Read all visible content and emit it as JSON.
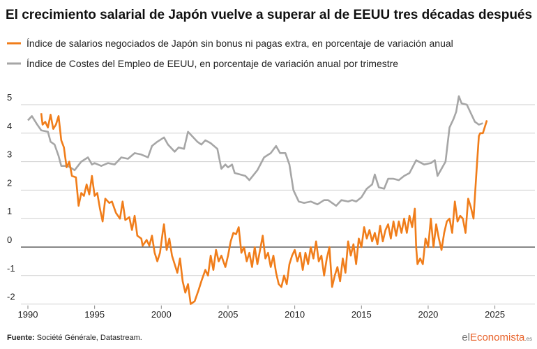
{
  "chart_data": {
    "type": "line",
    "title": "El crecimiento salarial de Japón vuelve a superar al de EEUU tres décadas después",
    "xlim": [
      1990,
      2028
    ],
    "xticks": [
      1990,
      1995,
      2000,
      2005,
      2010,
      2015,
      2020,
      2025
    ],
    "ylim": [
      -2,
      5.5
    ],
    "yticks": [
      5,
      4,
      3,
      2,
      1,
      0,
      -1,
      -2
    ],
    "grid": true,
    "series": [
      {
        "name": "Índice de salarios negociados de Japón sin bonus ni pagas extra, en porcentaje de variación anual",
        "color": "#f07d1a",
        "x": [
          1991.0,
          1991.1,
          1991.3,
          1991.5,
          1991.7,
          1991.9,
          1992.1,
          1992.3,
          1992.5,
          1992.7,
          1992.9,
          1993.1,
          1993.3,
          1993.6,
          1993.8,
          1994.0,
          1994.2,
          1994.4,
          1994.6,
          1994.8,
          1995.0,
          1995.2,
          1995.4,
          1995.6,
          1995.8,
          1996.1,
          1996.3,
          1996.6,
          1996.9,
          1997.1,
          1997.3,
          1997.6,
          1997.8,
          1998.0,
          1998.2,
          1998.5,
          1998.6,
          1998.9,
          1999.1,
          1999.3,
          1999.5,
          1999.7,
          1999.9,
          2000.1,
          2000.2,
          2000.4,
          2000.6,
          2000.8,
          2001.0,
          2001.2,
          2001.4,
          2001.6,
          2001.8,
          2002.0,
          2002.2,
          2002.5,
          2002.8,
          2003.0,
          2003.3,
          2003.5,
          2003.7,
          2003.9,
          2004.1,
          2004.3,
          2004.5,
          2004.8,
          2005.0,
          2005.2,
          2005.4,
          2005.6,
          2005.8,
          2006.0,
          2006.2,
          2006.4,
          2006.6,
          2006.8,
          2007.0,
          2007.2,
          2007.4,
          2007.6,
          2007.8,
          2008.0,
          2008.2,
          2008.4,
          2008.6,
          2008.8,
          2009.0,
          2009.2,
          2009.4,
          2009.6,
          2009.8,
          2010.0,
          2010.2,
          2010.4,
          2010.6,
          2010.8,
          2011.0,
          2011.2,
          2011.4,
          2011.6,
          2011.8,
          2012.0,
          2012.2,
          2012.4,
          2012.6,
          2012.8,
          2013.0,
          2013.2,
          2013.4,
          2013.6,
          2013.8,
          2014.0,
          2014.2,
          2014.4,
          2014.6,
          2014.8,
          2015.0,
          2015.2,
          2015.4,
          2015.6,
          2015.8,
          2016.0,
          2016.2,
          2016.4,
          2016.6,
          2016.8,
          2017.0,
          2017.2,
          2017.4,
          2017.6,
          2017.8,
          2018.0,
          2018.2,
          2018.4,
          2018.6,
          2018.8,
          2019.0,
          2019.1,
          2019.2,
          2019.4,
          2019.6,
          2019.8,
          2020.0,
          2020.2,
          2020.4,
          2020.6,
          2020.8,
          2021.0,
          2021.2,
          2021.4,
          2021.6,
          2021.8,
          2022.0,
          2022.2,
          2022.4,
          2022.6,
          2022.8,
          2023.0,
          2023.2,
          2023.4,
          2023.6,
          2023.8,
          2023.9,
          2024.1,
          2024.4
        ],
        "values": [
          4.7,
          4.3,
          4.4,
          4.2,
          4.65,
          4.15,
          4.3,
          4.6,
          3.75,
          3.5,
          2.8,
          3.0,
          2.5,
          2.45,
          1.45,
          1.9,
          1.8,
          2.2,
          1.85,
          2.5,
          1.8,
          1.9,
          1.35,
          0.9,
          1.7,
          1.55,
          1.6,
          1.2,
          1.0,
          1.6,
          0.95,
          1.05,
          0.6,
          1.1,
          0.4,
          0.3,
          0.05,
          0.25,
          0.05,
          0.4,
          -0.2,
          -0.5,
          -0.2,
          0.5,
          0.8,
          -0.1,
          0.3,
          -0.3,
          -0.6,
          -0.9,
          -0.4,
          -1.2,
          -1.6,
          -1.3,
          -2.0,
          -1.9,
          -1.5,
          -1.2,
          -0.8,
          -1.0,
          -0.3,
          -0.8,
          -0.1,
          -0.5,
          -0.3,
          -0.7,
          -0.3,
          0.2,
          0.5,
          0.45,
          0.7,
          -0.2,
          0.0,
          -0.5,
          -0.2,
          -0.7,
          0.0,
          -0.6,
          -0.1,
          0.4,
          -0.4,
          -0.2,
          -0.7,
          -0.3,
          -0.9,
          -1.3,
          -1.4,
          -1.0,
          -1.3,
          -0.6,
          -0.3,
          -0.1,
          -0.5,
          -0.2,
          -0.8,
          -0.2,
          -0.6,
          0.0,
          -0.4,
          0.2,
          -0.5,
          -0.3,
          -1.0,
          -0.4,
          0.0,
          -1.4,
          -1.0,
          -0.7,
          -1.2,
          -0.4,
          -0.9,
          0.2,
          -0.3,
          0.1,
          -0.6,
          0.3,
          0.0,
          0.7,
          0.3,
          0.6,
          0.2,
          0.5,
          0.1,
          0.75,
          0.2,
          0.6,
          0.8,
          0.3,
          0.9,
          0.4,
          0.9,
          0.5,
          1.0,
          0.5,
          1.1,
          0.7,
          1.35,
          0.0,
          -0.6,
          -0.4,
          -0.6,
          0.3,
          0.0,
          1.0,
          0.0,
          0.8,
          0.3,
          -0.1,
          0.5,
          0.9,
          1.0,
          0.5,
          1.6,
          0.9,
          1.1,
          1.0,
          0.5,
          1.7,
          1.4,
          1.0,
          2.5,
          3.9,
          4.0,
          4.0,
          4.45
        ]
      },
      {
        "name": "Índice de Costes del Empleo de EEUU, en porcentaje de variación anual por trimestre",
        "color": "#a6a6a6",
        "x": [
          1990.0,
          1990.3,
          1990.7,
          1991.0,
          1991.5,
          1991.7,
          1992.0,
          1992.3,
          1992.5,
          1993.0,
          1993.5,
          1994.0,
          1994.5,
          1994.8,
          1995.0,
          1995.5,
          1996.0,
          1996.5,
          1997.0,
          1997.5,
          1998.0,
          1998.5,
          1999.0,
          1999.3,
          1999.7,
          2000.2,
          2000.5,
          2001.0,
          2001.3,
          2001.7,
          2002.0,
          2002.3,
          2002.7,
          2003.0,
          2003.3,
          2003.7,
          2004.2,
          2004.5,
          2004.8,
          2005.0,
          2005.3,
          2005.5,
          2006.3,
          2006.6,
          2007.2,
          2007.7,
          2008.2,
          2008.6,
          2008.9,
          2009.3,
          2009.6,
          2009.9,
          2010.3,
          2010.7,
          2011.2,
          2011.7,
          2012.2,
          2012.5,
          2013.1,
          2013.5,
          2014.0,
          2014.3,
          2014.6,
          2015.0,
          2015.4,
          2015.8,
          2016.0,
          2016.3,
          2016.7,
          2017.0,
          2017.4,
          2017.8,
          2018.2,
          2018.6,
          2019.1,
          2019.7,
          2020.2,
          2020.5,
          2020.7,
          2021.0,
          2021.3,
          2021.6,
          2021.9,
          2022.1,
          2022.3,
          2022.5,
          2022.9,
          2023.2,
          2023.5,
          2023.8,
          2024.1
        ],
        "values": [
          4.45,
          4.6,
          4.3,
          4.1,
          4.05,
          3.7,
          3.6,
          3.2,
          2.85,
          2.85,
          2.7,
          3.0,
          3.15,
          2.9,
          2.95,
          2.85,
          2.95,
          2.9,
          3.15,
          3.1,
          3.3,
          3.25,
          3.15,
          3.55,
          3.7,
          3.85,
          3.6,
          3.35,
          3.5,
          3.45,
          4.05,
          3.9,
          3.7,
          3.6,
          3.75,
          3.65,
          3.45,
          2.75,
          2.9,
          2.8,
          2.9,
          2.6,
          2.5,
          2.35,
          2.7,
          3.15,
          3.3,
          3.55,
          3.3,
          3.3,
          2.9,
          2.0,
          1.6,
          1.55,
          1.6,
          1.5,
          1.65,
          1.65,
          1.45,
          1.65,
          1.6,
          1.65,
          1.6,
          1.75,
          2.05,
          2.2,
          2.55,
          2.1,
          2.05,
          2.4,
          2.4,
          2.35,
          2.5,
          2.6,
          3.05,
          2.9,
          2.95,
          3.05,
          2.5,
          2.75,
          3.0,
          4.2,
          4.5,
          4.75,
          5.3,
          5.05,
          5.0,
          4.7,
          4.4,
          4.3,
          4.35
        ]
      }
    ]
  },
  "source": {
    "label": "Fuente:",
    "text": "Société Générale, Datastream."
  },
  "logo": {
    "prefix": "el",
    "main": "Economista",
    "suffix": ".es"
  }
}
